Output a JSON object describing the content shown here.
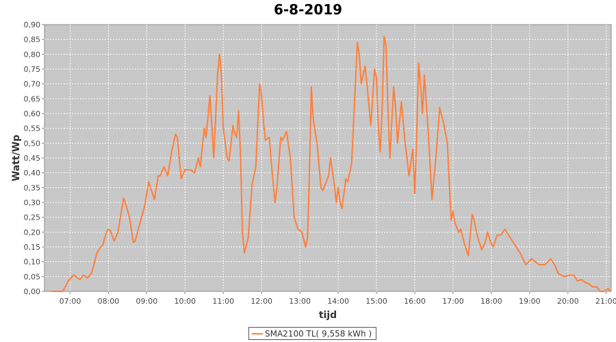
{
  "chart_data": {
    "type": "line",
    "title": "6-8-2019",
    "xlabel": "tijd",
    "ylabel": "Watt/Wp",
    "x_range_hours": [
      6.33,
      21.13
    ],
    "ylim": [
      0,
      0.9
    ],
    "y_ticks": [
      "0,00",
      "0,05",
      "0,10",
      "0,15",
      "0,20",
      "0,25",
      "0,30",
      "0,35",
      "0,40",
      "0,45",
      "0,50",
      "0,55",
      "0,60",
      "0,65",
      "0,70",
      "0,75",
      "0,80",
      "0,85",
      "0,90"
    ],
    "x_ticks": [
      "07:00",
      "08:00",
      "09:00",
      "10:00",
      "11:00",
      "12:00",
      "13:00",
      "14:00",
      "15:00",
      "16:00",
      "17:00",
      "18:00",
      "19:00",
      "20:00",
      "21:00"
    ],
    "grid": true,
    "legend_position": "bottom",
    "background_color": "#c8c8c8",
    "series": [
      {
        "name": "SMA2100 TL( 9,558 kWh )",
        "color": "#ff7f3a",
        "points": [
          [
            6.5,
            0.0
          ],
          [
            6.7,
            0.0
          ],
          [
            6.8,
            0.0
          ],
          [
            6.85,
            0.01
          ],
          [
            6.95,
            0.035
          ],
          [
            7.05,
            0.05
          ],
          [
            7.1,
            0.055
          ],
          [
            7.15,
            0.05
          ],
          [
            7.25,
            0.04
          ],
          [
            7.35,
            0.055
          ],
          [
            7.45,
            0.045
          ],
          [
            7.55,
            0.06
          ],
          [
            7.6,
            0.08
          ],
          [
            7.7,
            0.13
          ],
          [
            7.8,
            0.15
          ],
          [
            7.85,
            0.155
          ],
          [
            7.95,
            0.2
          ],
          [
            8.0,
            0.21
          ],
          [
            8.05,
            0.205
          ],
          [
            8.15,
            0.17
          ],
          [
            8.25,
            0.2
          ],
          [
            8.35,
            0.28
          ],
          [
            8.4,
            0.315
          ],
          [
            8.45,
            0.295
          ],
          [
            8.55,
            0.25
          ],
          [
            8.65,
            0.165
          ],
          [
            8.7,
            0.17
          ],
          [
            8.8,
            0.22
          ],
          [
            8.95,
            0.29
          ],
          [
            9.05,
            0.37
          ],
          [
            9.15,
            0.33
          ],
          [
            9.2,
            0.31
          ],
          [
            9.3,
            0.39
          ],
          [
            9.35,
            0.39
          ],
          [
            9.45,
            0.42
          ],
          [
            9.55,
            0.39
          ],
          [
            9.65,
            0.47
          ],
          [
            9.75,
            0.53
          ],
          [
            9.8,
            0.52
          ],
          [
            9.9,
            0.38
          ],
          [
            10.0,
            0.41
          ],
          [
            10.05,
            0.41
          ],
          [
            10.15,
            0.41
          ],
          [
            10.25,
            0.4
          ],
          [
            10.35,
            0.45
          ],
          [
            10.4,
            0.42
          ],
          [
            10.5,
            0.55
          ],
          [
            10.55,
            0.52
          ],
          [
            10.65,
            0.66
          ],
          [
            10.7,
            0.56
          ],
          [
            10.75,
            0.45
          ],
          [
            10.85,
            0.73
          ],
          [
            10.9,
            0.8
          ],
          [
            10.95,
            0.73
          ],
          [
            11.0,
            0.55
          ],
          [
            11.1,
            0.45
          ],
          [
            11.15,
            0.44
          ],
          [
            11.25,
            0.56
          ],
          [
            11.3,
            0.53
          ],
          [
            11.35,
            0.52
          ],
          [
            11.4,
            0.61
          ],
          [
            11.45,
            0.46
          ],
          [
            11.5,
            0.2
          ],
          [
            11.55,
            0.13
          ],
          [
            11.65,
            0.18
          ],
          [
            11.75,
            0.36
          ],
          [
            11.85,
            0.42
          ],
          [
            11.9,
            0.57
          ],
          [
            11.95,
            0.7
          ],
          [
            12.0,
            0.66
          ],
          [
            12.05,
            0.57
          ],
          [
            12.1,
            0.51
          ],
          [
            12.2,
            0.52
          ],
          [
            12.25,
            0.44
          ],
          [
            12.35,
            0.3
          ],
          [
            12.4,
            0.35
          ],
          [
            12.5,
            0.52
          ],
          [
            12.55,
            0.51
          ],
          [
            12.65,
            0.54
          ],
          [
            12.75,
            0.45
          ],
          [
            12.85,
            0.25
          ],
          [
            12.95,
            0.21
          ],
          [
            13.05,
            0.2
          ],
          [
            13.15,
            0.15
          ],
          [
            13.2,
            0.18
          ],
          [
            13.25,
            0.4
          ],
          [
            13.3,
            0.69
          ],
          [
            13.35,
            0.58
          ],
          [
            13.45,
            0.5
          ],
          [
            13.55,
            0.35
          ],
          [
            13.6,
            0.34
          ],
          [
            13.75,
            0.39
          ],
          [
            13.8,
            0.45
          ],
          [
            13.9,
            0.36
          ],
          [
            13.95,
            0.3
          ],
          [
            14.0,
            0.35
          ],
          [
            14.05,
            0.3
          ],
          [
            14.1,
            0.28
          ],
          [
            14.2,
            0.38
          ],
          [
            14.25,
            0.37
          ],
          [
            14.35,
            0.43
          ],
          [
            14.45,
            0.7
          ],
          [
            14.5,
            0.84
          ],
          [
            14.55,
            0.8
          ],
          [
            14.6,
            0.7
          ],
          [
            14.7,
            0.76
          ],
          [
            14.75,
            0.7
          ],
          [
            14.85,
            0.56
          ],
          [
            14.95,
            0.75
          ],
          [
            15.0,
            0.72
          ],
          [
            15.05,
            0.55
          ],
          [
            15.1,
            0.47
          ],
          [
            15.15,
            0.62
          ],
          [
            15.2,
            0.86
          ],
          [
            15.25,
            0.83
          ],
          [
            15.3,
            0.62
          ],
          [
            15.35,
            0.45
          ],
          [
            15.45,
            0.69
          ],
          [
            15.5,
            0.62
          ],
          [
            15.55,
            0.5
          ],
          [
            15.65,
            0.64
          ],
          [
            15.75,
            0.5
          ],
          [
            15.85,
            0.39
          ],
          [
            15.95,
            0.48
          ],
          [
            16.0,
            0.33
          ],
          [
            16.05,
            0.53
          ],
          [
            16.1,
            0.77
          ],
          [
            16.15,
            0.7
          ],
          [
            16.2,
            0.6
          ],
          [
            16.25,
            0.73
          ],
          [
            16.35,
            0.54
          ],
          [
            16.45,
            0.31
          ],
          [
            16.55,
            0.45
          ],
          [
            16.65,
            0.62
          ],
          [
            16.75,
            0.57
          ],
          [
            16.85,
            0.5
          ],
          [
            16.95,
            0.24
          ],
          [
            17.0,
            0.27
          ],
          [
            17.05,
            0.23
          ],
          [
            17.15,
            0.2
          ],
          [
            17.2,
            0.21
          ],
          [
            17.3,
            0.16
          ],
          [
            17.4,
            0.12
          ],
          [
            17.5,
            0.26
          ],
          [
            17.55,
            0.24
          ],
          [
            17.65,
            0.18
          ],
          [
            17.75,
            0.14
          ],
          [
            17.85,
            0.17
          ],
          [
            17.9,
            0.2
          ],
          [
            18.0,
            0.16
          ],
          [
            18.05,
            0.15
          ],
          [
            18.15,
            0.19
          ],
          [
            18.25,
            0.19
          ],
          [
            18.35,
            0.21
          ],
          [
            18.5,
            0.18
          ],
          [
            18.65,
            0.15
          ],
          [
            18.75,
            0.13
          ],
          [
            18.9,
            0.09
          ],
          [
            19.05,
            0.11
          ],
          [
            19.15,
            0.1
          ],
          [
            19.25,
            0.09
          ],
          [
            19.4,
            0.09
          ],
          [
            19.55,
            0.11
          ],
          [
            19.65,
            0.09
          ],
          [
            19.75,
            0.06
          ],
          [
            19.9,
            0.05
          ],
          [
            20.05,
            0.055
          ],
          [
            20.15,
            0.055
          ],
          [
            20.25,
            0.035
          ],
          [
            20.35,
            0.04
          ],
          [
            20.45,
            0.03
          ],
          [
            20.55,
            0.025
          ],
          [
            20.65,
            0.015
          ],
          [
            20.75,
            0.015
          ],
          [
            20.85,
            0.0
          ],
          [
            20.95,
            0.0
          ],
          [
            21.05,
            0.01
          ],
          [
            21.1,
            0.0
          ]
        ]
      }
    ]
  }
}
